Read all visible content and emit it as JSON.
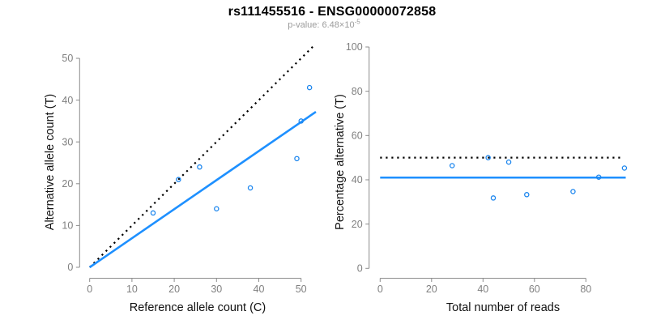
{
  "header": {
    "title": "rs111455516 - ENSG00000072858",
    "subtitle_prefix": "p-value: 6.48×10",
    "subtitle_exponent": "-5"
  },
  "colors": {
    "point": "#1C86EE",
    "fit_line": "#1E90FF",
    "reference_line": "#000000",
    "axis": "#8C8C8C",
    "tick_label": "#808080",
    "axis_title": "#111111"
  },
  "chart_data": [
    {
      "type": "scatter",
      "title": "rs111455516 - ENSG00000072858",
      "xlabel": "Reference allele count (C)",
      "ylabel": "Alternative allele count (T)",
      "xticks": [
        0,
        10,
        20,
        30,
        40,
        50
      ],
      "yticks": [
        0,
        10,
        20,
        30,
        40,
        50
      ],
      "xlim": [
        0,
        53.5
      ],
      "ylim": [
        0,
        53.5
      ],
      "grid": false,
      "points": [
        [
          15,
          13
        ],
        [
          21,
          21
        ],
        [
          26,
          24
        ],
        [
          30,
          14
        ],
        [
          38,
          19
        ],
        [
          49,
          26
        ],
        [
          50,
          35
        ],
        [
          52,
          43
        ]
      ],
      "lines": [
        {
          "name": "identity-line",
          "style": "dotted",
          "x1": 0,
          "y1": 0,
          "x2": 53,
          "y2": 53
        },
        {
          "name": "fit-line",
          "style": "solid",
          "x1": 0,
          "y1": 0,
          "x2": 53.5,
          "y2": 37.2
        }
      ]
    },
    {
      "type": "scatter",
      "title": "rs111455516 - ENSG00000072858",
      "xlabel": "Total number of reads",
      "ylabel": "Percentage alternative (T)",
      "xticks": [
        0,
        20,
        40,
        60,
        80
      ],
      "yticks": [
        0,
        20,
        40,
        60,
        80,
        100
      ],
      "xlim": [
        0,
        95.5
      ],
      "ylim": [
        0,
        100
      ],
      "grid": false,
      "points": [
        [
          28,
          46.4
        ],
        [
          42,
          50
        ],
        [
          50,
          48
        ],
        [
          44,
          31.8
        ],
        [
          57,
          33.3
        ],
        [
          75,
          34.7
        ],
        [
          85,
          41.2
        ],
        [
          95,
          45.3
        ]
      ],
      "lines": [
        {
          "name": "expected-percentage-line",
          "style": "dotted",
          "x1": 0,
          "y1": 50,
          "x2": 94,
          "y2": 50
        },
        {
          "name": "fit-line",
          "style": "solid",
          "x1": 0,
          "y1": 41,
          "x2": 95.5,
          "y2": 41
        }
      ]
    }
  ]
}
